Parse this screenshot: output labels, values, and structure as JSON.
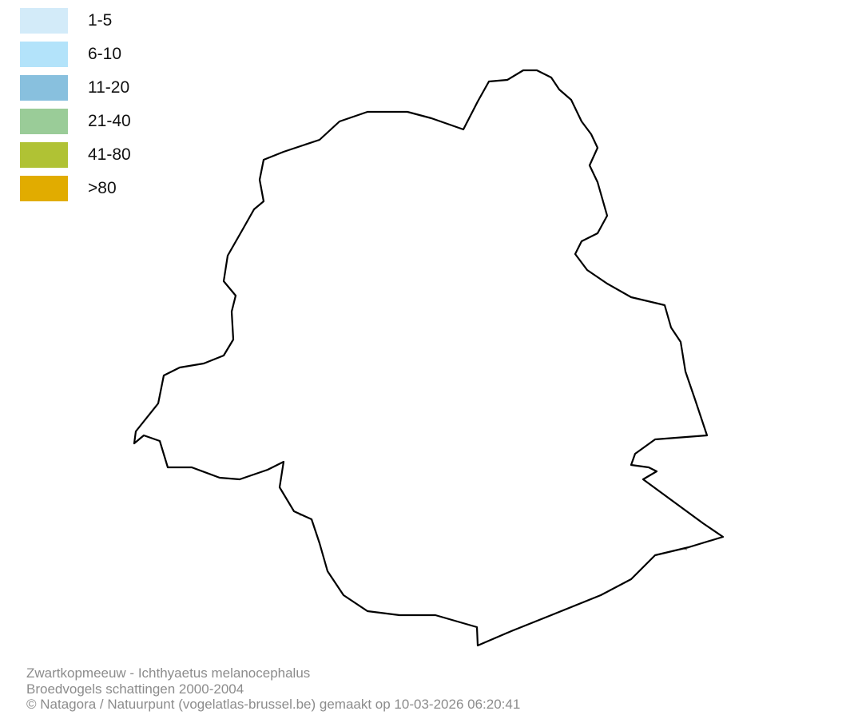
{
  "legend": {
    "items": [
      {
        "label": "1-5",
        "color": "#d3ebf9"
      },
      {
        "label": "6-10",
        "color": "#b3e3fa"
      },
      {
        "label": "11-20",
        "color": "#88c0de"
      },
      {
        "label": "21-40",
        "color": "#9acc98"
      },
      {
        "label": "41-80",
        "color": "#b0c234"
      },
      {
        "label": ">80",
        "color": "#e1ac00"
      }
    ]
  },
  "map": {
    "region_fill": "#ffffff",
    "boundary_color": "#000000",
    "commune_border_color": "#8a8078"
  },
  "footer": {
    "species": "Zwartkopmeeuw - Ichthyaetus melanocephalus",
    "dataset": "Broedvogels schattingen 2000-2004",
    "credit": "© Natagora / Natuurpunt (vogelatlas-brussel.be) gemaakt op 10-03-2026 06:20:41"
  }
}
